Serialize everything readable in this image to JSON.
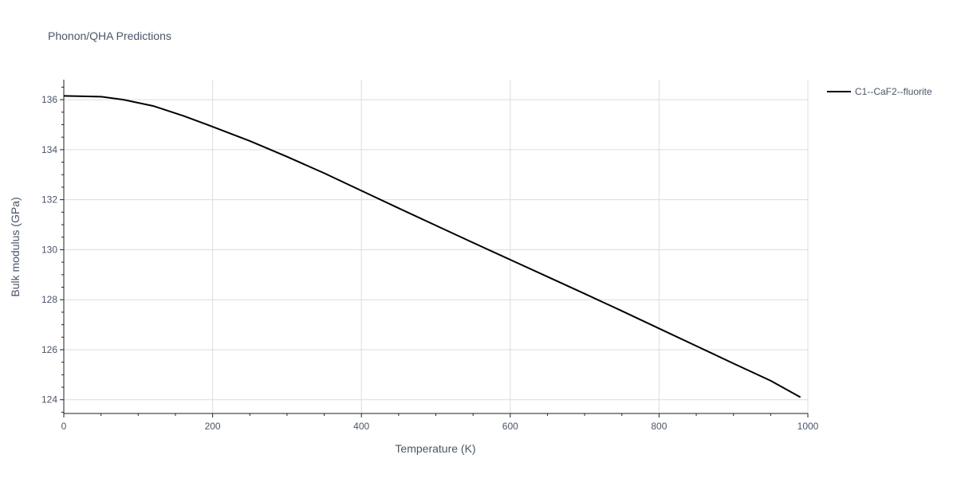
{
  "chart_data": {
    "type": "line",
    "title": "Phonon/QHA Predictions",
    "xlabel": "Temperature (K)",
    "ylabel": "Bulk modulus (GPa)",
    "xlim": [
      0,
      1000
    ],
    "ylim": [
      123.45,
      136.8
    ],
    "x_ticks": [
      0,
      200,
      400,
      600,
      800,
      1000
    ],
    "y_ticks": [
      124,
      126,
      128,
      130,
      132,
      134,
      136
    ],
    "grid": true,
    "legend_position": "top-right",
    "series": [
      {
        "name": "C1--CaF2--fluorite",
        "color": "#000000",
        "x": [
          0,
          20,
          50,
          80,
          120,
          160,
          200,
          250,
          300,
          350,
          400,
          450,
          500,
          550,
          600,
          650,
          700,
          750,
          800,
          850,
          900,
          950,
          990
        ],
        "y": [
          136.15,
          136.14,
          136.12,
          136.0,
          135.75,
          135.36,
          134.92,
          134.35,
          133.72,
          133.06,
          132.36,
          131.66,
          130.97,
          130.28,
          129.6,
          128.92,
          128.24,
          127.55,
          126.85,
          126.15,
          125.45,
          124.76,
          124.1
        ]
      }
    ]
  }
}
